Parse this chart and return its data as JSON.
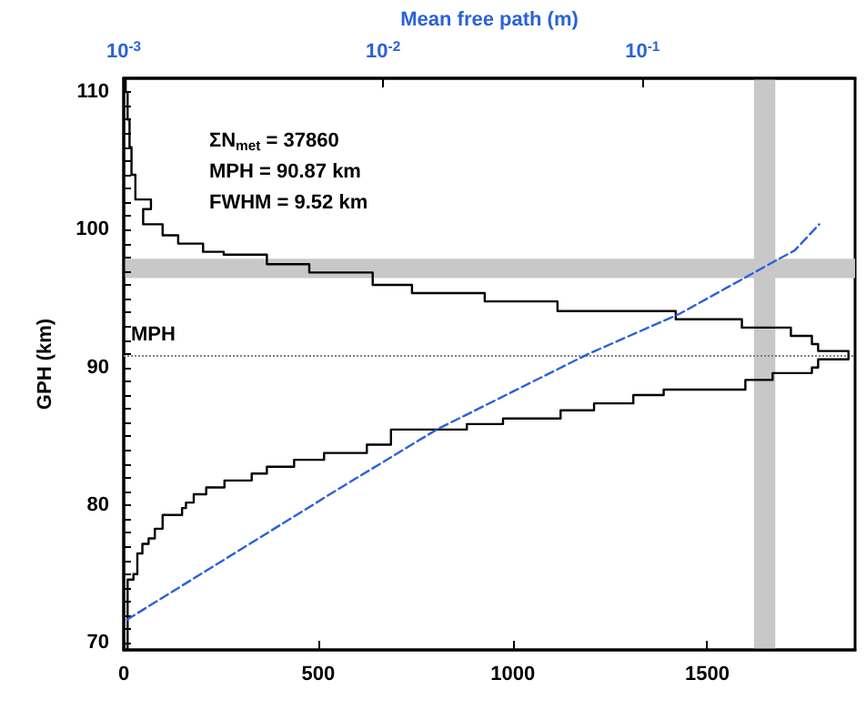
{
  "chart_data": {
    "type": "line",
    "log": "x2",
    "marker": "none",
    "ylabel": "GPH (km)",
    "x2label": "Mean free path (m)",
    "annotations": [
      "ΣN$_{met}$ = 37860",
      "MPH = 90.87 km",
      "FWHM = 9.52 km"
    ],
    "xlim": [
      0,
      1880
    ],
    "xticks": [
      0,
      500,
      1000,
      1500
    ],
    "x2lim": [
      0.001,
      0.66
    ],
    "x2ticks": [
      {
        "value": 0.001,
        "label": "10$^{-3}$"
      },
      {
        "value": 0.01,
        "label": "10$^{-2}$"
      },
      {
        "value": 0.1,
        "label": "10$^{-1}$"
      }
    ],
    "ylim": [
      69.5,
      111
    ],
    "yticks": [
      70,
      {
        "value": 71,
        "label": null
      },
      {
        "value": 72,
        "label": null
      },
      {
        "value": 73,
        "label": null
      },
      {
        "value": 74,
        "label": null
      },
      {
        "value": 75,
        "label": null
      },
      {
        "value": 76,
        "label": null
      },
      {
        "value": 77,
        "label": null
      },
      {
        "value": 78,
        "label": null
      },
      {
        "value": 79,
        "label": null
      },
      80,
      {
        "value": 81,
        "label": null
      },
      {
        "value": 82,
        "label": null
      },
      {
        "value": 83,
        "label": null
      },
      {
        "value": 84,
        "label": null
      },
      {
        "value": 85,
        "label": null
      },
      {
        "value": 86,
        "label": null
      },
      {
        "value": 87,
        "label": null
      },
      {
        "value": 88,
        "label": null
      },
      {
        "value": 89,
        "label": null
      },
      90,
      {
        "value": 91,
        "label": null
      },
      {
        "value": 92,
        "label": null
      },
      {
        "value": 93,
        "label": null
      },
      {
        "value": 94,
        "label": null
      },
      {
        "value": 95,
        "label": null
      },
      {
        "value": 96,
        "label": null
      },
      {
        "value": 97,
        "label": null
      },
      {
        "value": 98,
        "label": null
      },
      {
        "value": 99,
        "label": null
      },
      100,
      {
        "value": 101,
        "label": null
      },
      {
        "value": 102,
        "label": null
      },
      {
        "value": 103,
        "label": null
      },
      {
        "value": 104,
        "label": null
      },
      {
        "value": 105,
        "label": null
      },
      {
        "value": 106,
        "label": null
      },
      {
        "value": 107,
        "label": null
      },
      {
        "value": 108,
        "label": null
      },
      {
        "value": 109,
        "label": null
      },
      110
    ],
    "series": [
      {
        "color": "#000000",
        "x": [
          10,
          10,
          25,
          25,
          35,
          35,
          48,
          48,
          64,
          64,
          80,
          80,
          100,
          100,
          150,
          150,
          160,
          160,
          180,
          180,
          212,
          212,
          259,
          259,
          329,
          329,
          368,
          368,
          438,
          438,
          515,
          515,
          625,
          625,
          687,
          687,
          882,
          882,
          975,
          975,
          1123,
          1123,
          1209,
          1209,
          1310,
          1310,
          1388,
          1388,
          1598,
          1598,
          1668,
          1668,
          1769,
          1769,
          1785,
          1785,
          1863,
          1863,
          1785,
          1785,
          1769,
          1769,
          1715,
          1715,
          1589,
          1589,
          1419,
          1419,
          1115,
          1115,
          928,
          928,
          741,
          741,
          640,
          640,
          477,
          477,
          368,
          368,
          257,
          257,
          204,
          204,
          140,
          140,
          100,
          100,
          50,
          50,
          70,
          70,
          30,
          30,
          20,
          20,
          15,
          15,
          10,
          10,
          5,
          5
        ],
        "values": [
          69.5,
          74.6,
          74.6,
          75.0,
          75.0,
          76.5,
          76.5,
          77.2,
          77.2,
          77.6,
          77.6,
          78.3,
          78.3,
          79.3,
          79.3,
          79.8,
          79.8,
          80.2,
          80.2,
          80.8,
          80.8,
          81.3,
          81.3,
          81.8,
          81.8,
          82.3,
          82.3,
          82.8,
          82.8,
          83.3,
          83.3,
          83.8,
          83.8,
          84.4,
          84.4,
          85.5,
          85.5,
          85.9,
          85.9,
          86.3,
          86.3,
          86.9,
          86.9,
          87.4,
          87.4,
          88.0,
          88.0,
          88.4,
          88.4,
          89.1,
          89.1,
          89.6,
          89.6,
          90.0,
          90.0,
          90.6,
          90.6,
          91.2,
          91.2,
          91.7,
          91.7,
          92.3,
          92.3,
          92.9,
          92.9,
          93.5,
          93.5,
          94.1,
          94.1,
          94.8,
          94.8,
          95.4,
          95.4,
          96.0,
          96.0,
          96.9,
          96.9,
          97.5,
          97.5,
          98.2,
          98.2,
          98.4,
          98.4,
          99.0,
          99.0,
          99.6,
          99.6,
          100.4,
          100.4,
          101.5,
          101.5,
          102.2,
          102.2,
          104,
          104,
          106,
          106,
          108,
          108,
          110,
          110,
          111
        ]
      },
      {
        "axis": "x2",
        "color": "#2a62d8",
        "line_style": "dashed",
        "x": [
          0.00103,
          0.00703,
          0.0161,
          0.062,
          0.139,
          0.329,
          0.386,
          0.48
        ],
        "values": [
          71.7,
          81.4,
          85.5,
          91.0,
          93.9,
          97.8,
          98.5,
          100.4
        ]
      }
    ],
    "ref_lines": [
      {
        "axis": "y",
        "value": 90.87,
        "label": "MPH",
        "color": "#808080",
        "line_style": "dotted"
      }
    ],
    "bands": [
      {
        "axis": "x",
        "from": 1620,
        "to": 1675,
        "color": "#c8c8c8"
      },
      {
        "axis": "y",
        "from": 96.5,
        "to": 97.9,
        "color": "#c8c8c8"
      }
    ]
  }
}
